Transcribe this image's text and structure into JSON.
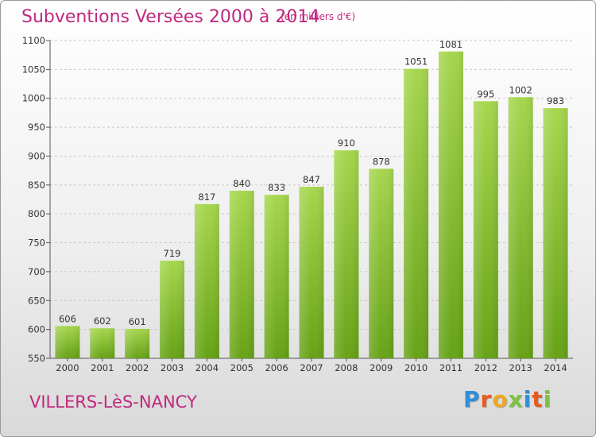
{
  "header": {
    "title": "Subventions Versées 2000 à 2014",
    "unit_note": "(en milliers d'€)"
  },
  "footer": {
    "commune": "VILLERS-LèS-NANCY",
    "brand": {
      "letters": [
        "P",
        "r",
        "o",
        "x",
        "i",
        "t",
        "i"
      ],
      "colors": [
        "#2f8fd8",
        "#e85a1e",
        "#f0a81e",
        "#7cc242",
        "#2f8fd8",
        "#e85a1e",
        "#7cc242"
      ]
    }
  },
  "colors": {
    "title": "#c0287e",
    "bar_light": "#a6d64e",
    "bar_dark": "#66a216",
    "grid": "#c8c8c8"
  },
  "chart_data": {
    "type": "bar",
    "title": "Subventions Versées 2000 à 2014",
    "subtitle": "(en milliers d'€)",
    "categories": [
      "2000",
      "2001",
      "2002",
      "2003",
      "2004",
      "2005",
      "2006",
      "2007",
      "2008",
      "2009",
      "2010",
      "2011",
      "2012",
      "2013",
      "2014"
    ],
    "values": [
      606,
      602,
      601,
      719,
      817,
      840,
      833,
      847,
      910,
      878,
      1051,
      1081,
      995,
      1002,
      983
    ],
    "ylim": [
      550,
      1100
    ],
    "yticks": [
      550,
      600,
      650,
      700,
      750,
      800,
      850,
      900,
      950,
      1000,
      1050,
      1100
    ],
    "grid": true,
    "data_labels": true
  }
}
